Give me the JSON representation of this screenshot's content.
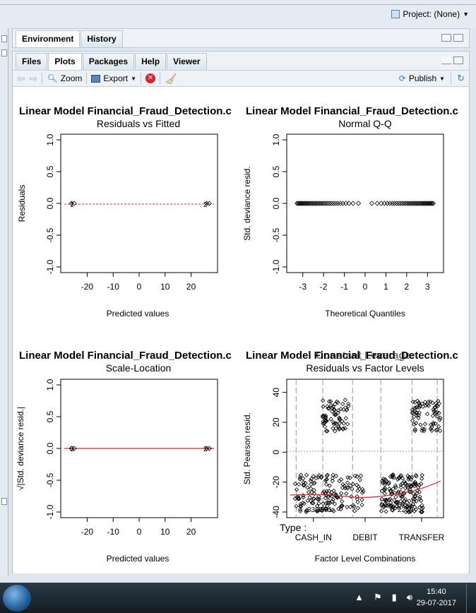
{
  "project": {
    "label": "Project: (None)"
  },
  "top_pane": {
    "tabs": [
      "Environment",
      "History"
    ]
  },
  "bottom_pane": {
    "tabs": [
      "Files",
      "Plots",
      "Packages",
      "Help",
      "Viewer"
    ],
    "active_tab": "Plots",
    "toolbar": {
      "zoom": "Zoom",
      "export": "Export",
      "publish": "Publish"
    }
  },
  "plots": {
    "panel_title": "Linear Model Financial_Fraud_Detection.c",
    "p1": {
      "subtitle": "Residuals vs Fitted",
      "xlabel": "Predicted values",
      "ylabel": "Residuals"
    },
    "p2": {
      "subtitle": "Normal Q-Q",
      "xlabel": "Theoretical Quantiles",
      "ylabel": "Std. deviance resid."
    },
    "p3": {
      "subtitle": "Scale-Location",
      "xlabel": "Predicted values",
      "ylabel": "√|Std. deviance resid.|"
    },
    "p4": {
      "subtitle": "Residuals vs Factor Levels",
      "overlap_title": "Constant Leverage:",
      "xlabel": "Factor Level Combinations",
      "ylabel": "Std. Pearson resid.",
      "factor_label": "Type :"
    },
    "annot": {
      "n1": "1",
      "n2": "2",
      "n3": "5",
      "a": "3306",
      "b": "3081",
      "c": "2259"
    }
  },
  "chart_data": [
    {
      "type": "scatter",
      "title": "Linear Model Financial_Fraud_Detection.c",
      "subtitle": "Residuals vs Fitted",
      "xlabel": "Predicted values",
      "ylabel": "Residuals",
      "xlim": [
        -28,
        28
      ],
      "ylim": [
        -1,
        1
      ],
      "xticks": [
        "-20",
        "-10",
        "0",
        "10",
        "20"
      ],
      "yticks": [
        "-1.0",
        "-0.5",
        "0.0",
        "0.5",
        "1.0"
      ],
      "points": [
        [
          -26,
          0
        ],
        [
          -25,
          0
        ],
        [
          26,
          0
        ],
        [
          27,
          0
        ]
      ],
      "smooth_line": 0
    },
    {
      "type": "scatter",
      "title": "Linear Model Financial_Fraud_Detection.c",
      "subtitle": "Normal Q-Q",
      "xlabel": "Theoretical Quantiles",
      "ylabel": "Std. deviance resid.",
      "xlim": [
        -3.5,
        3.5
      ],
      "ylim": [
        -1,
        1
      ],
      "xticks": [
        "-3",
        "-2",
        "-1",
        "0",
        "1",
        "2",
        "3"
      ],
      "yticks": [
        "-1.0",
        "-0.5",
        "0.0",
        "0.5",
        "1.0"
      ],
      "points_range": [
        -3.3,
        3.3
      ],
      "y_value": 0
    },
    {
      "type": "scatter",
      "title": "Linear Model Financial_Fraud_Detection.c",
      "subtitle": "Scale-Location",
      "xlabel": "Predicted values",
      "ylabel": "√|Std. deviance resid.|",
      "xlim": [
        -28,
        28
      ],
      "ylim": [
        -1,
        1
      ],
      "xticks": [
        "-20",
        "-10",
        "0",
        "10",
        "20"
      ],
      "yticks": [
        "-1.0",
        "-0.5",
        "0.0",
        "0.5",
        "1.0"
      ],
      "points": [
        [
          -26,
          0
        ],
        [
          -25,
          0
        ],
        [
          26,
          0
        ],
        [
          27,
          0
        ]
      ],
      "smooth_line": 0
    },
    {
      "type": "scatter",
      "title": "Constant Leverage:",
      "subtitle": "Residuals vs Factor Levels",
      "xlabel": "Factor Level Combinations",
      "ylabel": "Std. Pearson resid.",
      "ylim": [
        -40,
        45
      ],
      "yticks": [
        "-40",
        "-20",
        "0",
        "20",
        "40"
      ],
      "categories": [
        "CASH_IN",
        "DEBIT",
        "TRANSFER"
      ],
      "clusters": [
        {
          "x": [
            0.05,
            0.5
          ],
          "y": [
            -40,
            -15
          ]
        },
        {
          "x": [
            0.23,
            0.4
          ],
          "y": [
            14,
            35
          ]
        },
        {
          "x": [
            0.6,
            0.87
          ],
          "y": [
            -40,
            -15
          ]
        },
        {
          "x": [
            0.8,
            0.98
          ],
          "y": [
            14,
            35
          ]
        }
      ]
    }
  ],
  "taskbar": {
    "time": "15:40",
    "date": "29-07-2017"
  }
}
